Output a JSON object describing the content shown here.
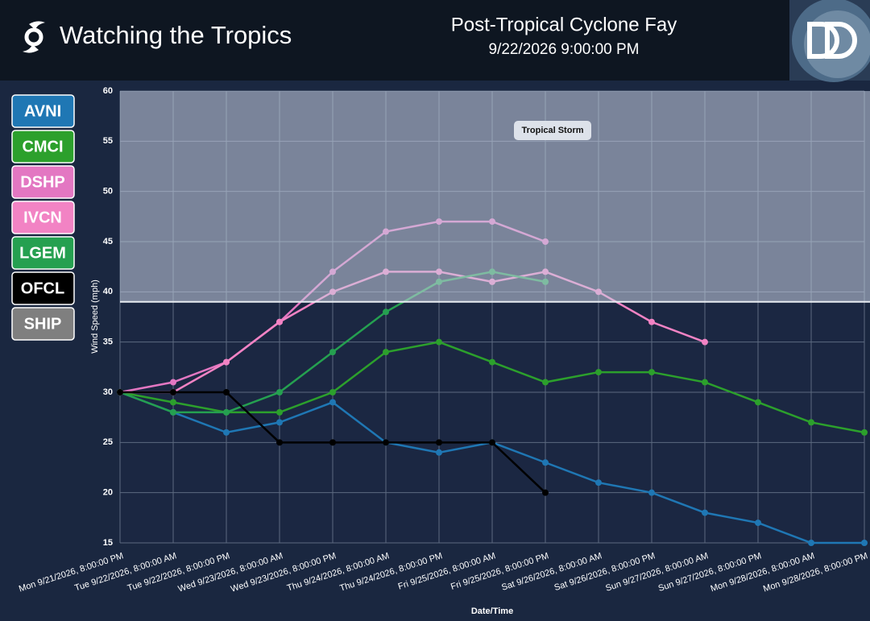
{
  "header": {
    "app_title": "Watching the Tropics"
  },
  "chart_data": {
    "type": "line",
    "title": "Post-Tropical Cyclone Fay",
    "subtitle": "9/22/2026 9:00:00 PM",
    "x_label": "Date/Time",
    "y_label": "Wind Speed (mph)",
    "categories": [
      "Mon 9/21/2026, 8:00:00 PM",
      "Tue 9/22/2026, 8:00:00 AM",
      "Tue 9/22/2026, 8:00:00 PM",
      "Wed 9/23/2026, 8:00:00 AM",
      "Wed 9/23/2026, 8:00:00 PM",
      "Thu 9/24/2026, 8:00:00 AM",
      "Thu 9/24/2026, 8:00:00 PM",
      "Fri 9/25/2026, 8:00:00 AM",
      "Fri 9/25/2026, 8:00:00 PM",
      "Sat 9/26/2026, 8:00:00 AM",
      "Sat 9/26/2026, 8:00:00 PM",
      "Sun 9/27/2026, 8:00:00 AM",
      "Sun 9/27/2026, 8:00:00 PM",
      "Mon 9/28/2026, 8:00:00 AM",
      "Mon 9/28/2026, 8:00:00 PM"
    ],
    "series": [
      {
        "name": "AVNI",
        "color": "#1f77b4",
        "values": [
          30,
          28,
          26,
          27,
          29,
          25,
          24,
          25,
          23,
          21,
          20,
          18,
          17,
          15,
          15
        ]
      },
      {
        "name": "CMCI",
        "color": "#2ca02c",
        "values": [
          30,
          29,
          28,
          28,
          30,
          34,
          35,
          33,
          31,
          32,
          32,
          31,
          29,
          27,
          26
        ]
      },
      {
        "name": "DSHP",
        "color": "#e377c2",
        "values": [
          30,
          31,
          33,
          37,
          42,
          46,
          47,
          47,
          45,
          null,
          null,
          null,
          null,
          null,
          null
        ]
      },
      {
        "name": "IVCN",
        "color": "#f283c4",
        "values": [
          30,
          30,
          33,
          37,
          40,
          42,
          42,
          41,
          42,
          40,
          37,
          35,
          null,
          null,
          null
        ]
      },
      {
        "name": "LGEM",
        "color": "#25a050",
        "values": [
          30,
          28,
          28,
          30,
          34,
          38,
          41,
          42,
          41,
          null,
          null,
          null,
          null,
          null,
          null
        ]
      },
      {
        "name": "OFCL",
        "color": "#000000",
        "values": [
          30,
          30,
          30,
          25,
          25,
          25,
          25,
          25,
          20,
          null,
          null,
          null,
          null,
          null,
          null
        ]
      },
      {
        "name": "SHIP",
        "color": "#7f7f7f",
        "values": [
          null,
          null,
          null,
          null,
          null,
          null,
          null,
          null,
          null,
          null,
          null,
          null,
          null,
          null,
          null
        ]
      }
    ],
    "ylim": [
      15,
      60
    ],
    "yticks": [
      15,
      20,
      25,
      30,
      35,
      40,
      45,
      50,
      55,
      60
    ],
    "grid": true,
    "bands": [
      {
        "label": "Tropical Storm",
        "from": 39,
        "to": 60
      }
    ]
  }
}
